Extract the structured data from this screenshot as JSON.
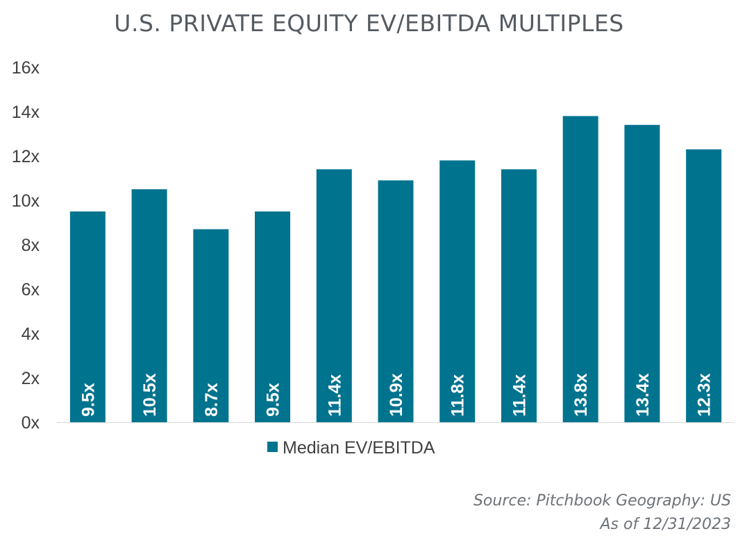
{
  "chart_data": {
    "type": "bar",
    "title": "U.S. PRIVATE EQUITY EV/EBITDA MULTIPLES",
    "categories": [
      "",
      "",
      "",
      "",
      "",
      "",
      "",
      "",
      "",
      "",
      ""
    ],
    "series": [
      {
        "name": "Median EV/EBITDA",
        "values": [
          9.5,
          10.5,
          8.7,
          9.5,
          11.4,
          10.9,
          11.8,
          11.4,
          13.8,
          13.4,
          12.3
        ],
        "data_labels": [
          "9.5x",
          "10.5x",
          "8.7x",
          "9.5x",
          "11.4x",
          "10.9x",
          "11.8x",
          "11.4x",
          "13.8x",
          "13.4x",
          "12.3x"
        ]
      }
    ],
    "ylim": [
      0,
      16
    ],
    "yticks": [
      0,
      2,
      4,
      6,
      8,
      10,
      12,
      14,
      16
    ],
    "ytick_labels": [
      "0x",
      "2x",
      "4x",
      "6x",
      "8x",
      "10x",
      "12x",
      "14x",
      "16x"
    ],
    "xlabel": "",
    "ylabel": "",
    "grid": false,
    "legend": "bottom-center"
  },
  "colors": {
    "bar": "#00738f",
    "title": "#555b61",
    "axis_text": "#404040",
    "source_text": "#6d7278",
    "bar_label": "#ffffff"
  },
  "source": {
    "line1": "Source: Pitchbook Geography: US",
    "line2": "As of 12/31/2023"
  }
}
